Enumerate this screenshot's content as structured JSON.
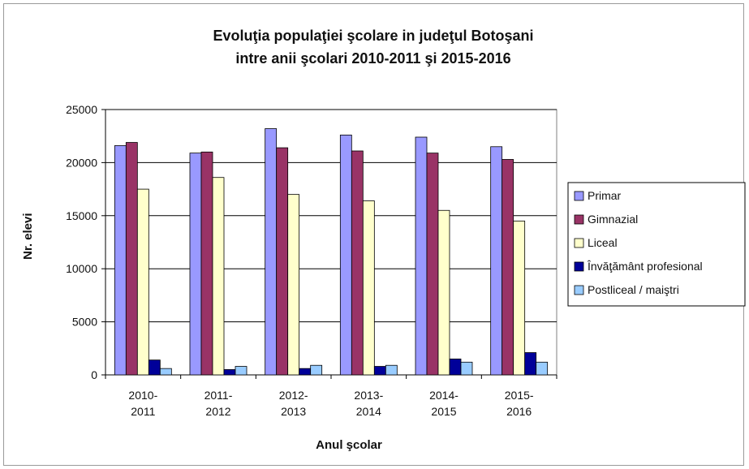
{
  "chart_data": {
    "type": "bar",
    "title": "Evoluţia populaţiei şcolare in judeţul Botoşani",
    "subtitle": "intre anii şcolari 2010-2011 şi 2015-2016",
    "xlabel": "Anul şcolar",
    "ylabel": "Nr. elevi",
    "ylim": [
      0,
      25000
    ],
    "yticks": [
      "0",
      "5000",
      "10000",
      "15000",
      "20000",
      "25000"
    ],
    "categories": [
      [
        "2010-",
        "2011"
      ],
      [
        "2011-",
        "2012"
      ],
      [
        "2012-",
        "2013"
      ],
      [
        "2013-",
        "2014"
      ],
      [
        "2014-",
        "2015"
      ],
      [
        "2015-",
        "2016"
      ]
    ],
    "series": [
      {
        "name": "Primar",
        "color": "#9999ff",
        "values": [
          21600,
          20900,
          23200,
          22600,
          22400,
          21500
        ]
      },
      {
        "name": "Gimnazial",
        "color": "#993366",
        "values": [
          21900,
          21000,
          21400,
          21100,
          20900,
          20300
        ]
      },
      {
        "name": "Liceal",
        "color": "#ffffcc",
        "values": [
          17500,
          18600,
          17000,
          16400,
          15500,
          14500
        ]
      },
      {
        "name": "Învăţământ profesional",
        "color": "#000099",
        "values": [
          1400,
          500,
          600,
          800,
          1500,
          2100
        ]
      },
      {
        "name": "Postliceal / maiştri",
        "color": "#99ccff",
        "values": [
          600,
          800,
          900,
          900,
          1200,
          1200
        ]
      }
    ],
    "grid": true,
    "legend": "right"
  }
}
